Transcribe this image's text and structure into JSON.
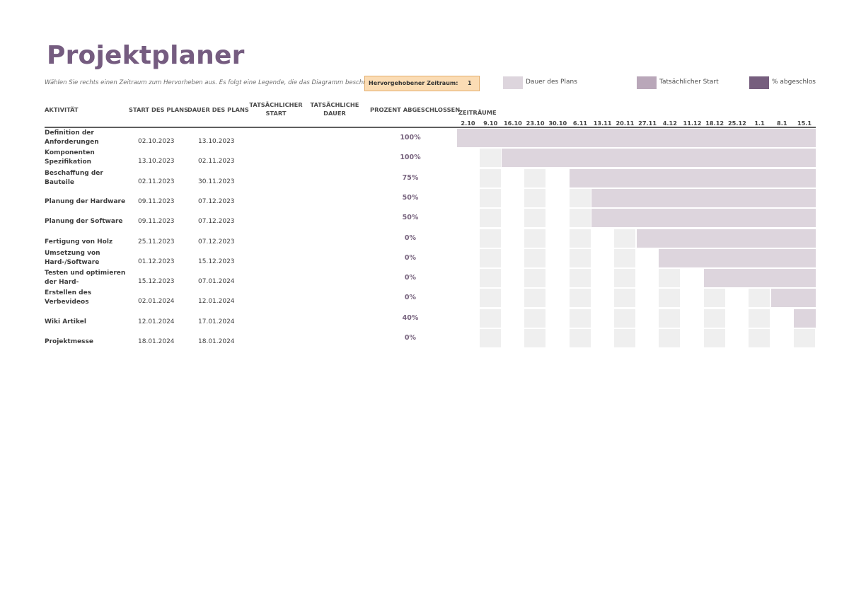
{
  "title": "Projektplaner",
  "subtitle": "Wählen Sie rechts einen Zeitraum zum Hervorheben aus.  Es folgt eine Legende, die das Diagramm beschreibt",
  "highlight": {
    "label": "Hervorgehobener Zeitraum:",
    "value": "1"
  },
  "legend": [
    {
      "name": "plan-duration",
      "label": "Dauer des Plans",
      "color": "#ddd5dd"
    },
    {
      "name": "actual-start",
      "label": "Tatsächlicher Start",
      "color": "#b9a7b9"
    },
    {
      "name": "percent-complete",
      "label": "% abgeschlos",
      "color": "#765e7e"
    }
  ],
  "columns": {
    "activity": "AKTIVITÄT",
    "plan_start": "START DES PLANS",
    "plan_duration": "DAUER DES PLANS",
    "actual_start": "TATSÄCHLICHER START",
    "actual_duration": "TATSÄCHLICHE DAUER",
    "percent": "PROZENT ABGESCHLOSSEN",
    "periods": "ZEITRÄUME"
  },
  "periods": [
    "2.10",
    "9.10",
    "16.10",
    "23.10",
    "30.10",
    "6.11",
    "13.11",
    "20.11",
    "27.11",
    "4.12",
    "11.12",
    "18.12",
    "25.12",
    "1.1",
    "8.1",
    "15.1"
  ],
  "colors": {
    "accent": "#755c80",
    "bar": "#ddd5dd",
    "grid": "#efefef",
    "highlight": "#fbdcb4"
  },
  "tasks": [
    {
      "name": "Definition der Anforderungen",
      "start": "02.10.2023",
      "end": "13.10.2023",
      "percent": "100%",
      "bar_start": 0
    },
    {
      "name": "Komponenten Spezifikation",
      "start": "13.10.2023",
      "end": "02.11.2023",
      "percent": "100%",
      "bar_start": 2
    },
    {
      "name": "Beschaffung der Bauteile",
      "start": "02.11.2023",
      "end": "30.11.2023",
      "percent": "75%",
      "bar_start": 5
    },
    {
      "name": "Planung der Hardware",
      "start": "09.11.2023",
      "end": "07.12.2023",
      "percent": "50%",
      "bar_start": 6
    },
    {
      "name": "Planung der Software",
      "start": "09.11.2023",
      "end": "07.12.2023",
      "percent": "50%",
      "bar_start": 6
    },
    {
      "name": "Fertigung von Holz",
      "start": "25.11.2023",
      "end": "07.12.2023",
      "percent": "0%",
      "bar_start": 8
    },
    {
      "name": "Umsetzung von Hard-/Software",
      "start": "01.12.2023",
      "end": "15.12.2023",
      "percent": "0%",
      "bar_start": 9
    },
    {
      "name": "Testen und optimieren der Hard-",
      "start": "15.12.2023",
      "end": "07.01.2024",
      "percent": "0%",
      "bar_start": 11
    },
    {
      "name": "Erstellen des Verbevideos",
      "start": "02.01.2024",
      "end": "12.01.2024",
      "percent": "0%",
      "bar_start": 14
    },
    {
      "name": "Wiki Artikel",
      "start": "12.01.2024",
      "end": "17.01.2024",
      "percent": "40%",
      "bar_start": 15
    },
    {
      "name": "Projektmesse",
      "start": "18.01.2024",
      "end": "18.01.2024",
      "percent": "0%",
      "bar_start": null
    }
  ]
}
